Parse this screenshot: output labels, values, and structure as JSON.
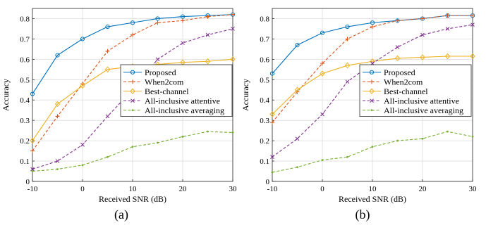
{
  "chart_data": [
    {
      "type": "line",
      "panel_label": "(a)",
      "xlabel": "Received SNR (dB)",
      "ylabel": "Accuracy",
      "xlim": [
        -10,
        30
      ],
      "ylim": [
        0,
        0.85
      ],
      "xticks": [
        -10,
        0,
        10,
        20,
        30
      ],
      "xtick_labels": [
        "-10",
        "0",
        "10",
        "20",
        "30"
      ],
      "yticks": [
        0,
        0.1,
        0.2,
        0.3,
        0.4,
        0.5,
        0.6,
        0.7,
        0.8
      ],
      "ytick_labels": [
        "0",
        "0.1",
        "0.2",
        "0.3",
        "0.4",
        "0.5",
        "0.6",
        "0.7",
        "0.8"
      ],
      "grid": true,
      "legend_position": "right",
      "x": [
        -10,
        -5,
        0,
        5,
        10,
        15,
        20,
        25,
        30
      ],
      "series": [
        {
          "name": "Proposed",
          "color": "#0072BD",
          "dash": "solid",
          "marker": "circle",
          "values": [
            0.43,
            0.62,
            0.7,
            0.76,
            0.78,
            0.8,
            0.81,
            0.815,
            0.82
          ]
        },
        {
          "name": "When2com",
          "color": "#D95319",
          "dash": "dashed",
          "marker": "plus",
          "values": [
            0.15,
            0.32,
            0.48,
            0.64,
            0.72,
            0.78,
            0.79,
            0.81,
            0.82
          ]
        },
        {
          "name": "Best-channel",
          "color": "#EDB120",
          "dash": "solid",
          "marker": "diamond",
          "values": [
            0.2,
            0.38,
            0.47,
            0.55,
            0.565,
            0.575,
            0.585,
            0.59,
            0.6
          ]
        },
        {
          "name": "All-inclusive attentive",
          "color": "#7E2F8E",
          "dash": "dashed",
          "marker": "x",
          "values": [
            0.06,
            0.1,
            0.18,
            0.32,
            0.45,
            0.6,
            0.68,
            0.72,
            0.75
          ]
        },
        {
          "name": "All-inclusive averaging",
          "color": "#77AC30",
          "dash": "dashed",
          "marker": "dot",
          "values": [
            0.05,
            0.06,
            0.08,
            0.12,
            0.17,
            0.19,
            0.22,
            0.245,
            0.24
          ]
        }
      ]
    },
    {
      "type": "line",
      "panel_label": "(b)",
      "xlabel": "Received SNR (dB)",
      "ylabel": "Accuracy",
      "xlim": [
        -10,
        30
      ],
      "ylim": [
        0,
        0.85
      ],
      "xticks": [
        -10,
        0,
        10,
        20,
        30
      ],
      "xtick_labels": [
        "-10",
        "0",
        "10",
        "20",
        "30"
      ],
      "yticks": [
        0,
        0.1,
        0.2,
        0.3,
        0.4,
        0.5,
        0.6,
        0.7,
        0.8
      ],
      "ytick_labels": [
        "0",
        "0.1",
        "0.2",
        "0.3",
        "0.4",
        "0.5",
        "0.6",
        "0.7",
        "0.8"
      ],
      "grid": true,
      "legend_position": "right",
      "x": [
        -10,
        -5,
        0,
        5,
        10,
        15,
        20,
        25,
        30
      ],
      "series": [
        {
          "name": "Proposed",
          "color": "#0072BD",
          "dash": "solid",
          "marker": "circle",
          "values": [
            0.53,
            0.67,
            0.73,
            0.76,
            0.78,
            0.79,
            0.8,
            0.815,
            0.815
          ]
        },
        {
          "name": "When2com",
          "color": "#D95319",
          "dash": "dashed",
          "marker": "plus",
          "values": [
            0.29,
            0.44,
            0.58,
            0.7,
            0.76,
            0.79,
            0.8,
            0.815,
            0.815
          ]
        },
        {
          "name": "Best-channel",
          "color": "#EDB120",
          "dash": "solid",
          "marker": "diamond",
          "values": [
            0.33,
            0.45,
            0.53,
            0.57,
            0.59,
            0.605,
            0.61,
            0.615,
            0.615
          ]
        },
        {
          "name": "All-inclusive attentive",
          "color": "#7E2F8E",
          "dash": "dashed",
          "marker": "x",
          "values": [
            0.12,
            0.21,
            0.33,
            0.49,
            0.58,
            0.66,
            0.72,
            0.75,
            0.77
          ]
        },
        {
          "name": "All-inclusive averaging",
          "color": "#77AC30",
          "dash": "dashed",
          "marker": "dot",
          "values": [
            0.045,
            0.07,
            0.105,
            0.12,
            0.17,
            0.2,
            0.21,
            0.245,
            0.22
          ]
        }
      ]
    }
  ]
}
